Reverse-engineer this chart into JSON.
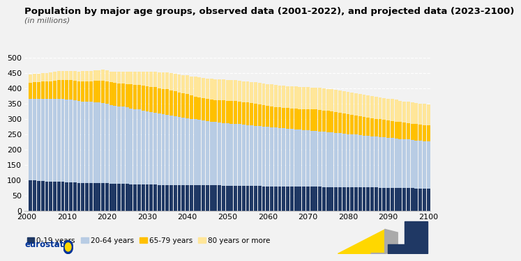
{
  "title": "Population by major age groups, observed data (2001-2022), and projected data (2023-2100)",
  "subtitle": "(in millions)",
  "years": [
    2001,
    2002,
    2003,
    2004,
    2005,
    2006,
    2007,
    2008,
    2009,
    2010,
    2011,
    2012,
    2013,
    2014,
    2015,
    2016,
    2017,
    2018,
    2019,
    2020,
    2021,
    2022,
    2023,
    2024,
    2025,
    2026,
    2027,
    2028,
    2029,
    2030,
    2031,
    2032,
    2033,
    2034,
    2035,
    2036,
    2037,
    2038,
    2039,
    2040,
    2041,
    2042,
    2043,
    2044,
    2045,
    2046,
    2047,
    2048,
    2049,
    2050,
    2051,
    2052,
    2053,
    2054,
    2055,
    2056,
    2057,
    2058,
    2059,
    2060,
    2061,
    2062,
    2063,
    2064,
    2065,
    2066,
    2067,
    2068,
    2069,
    2070,
    2071,
    2072,
    2073,
    2074,
    2075,
    2076,
    2077,
    2078,
    2079,
    2080,
    2081,
    2082,
    2083,
    2084,
    2085,
    2086,
    2087,
    2088,
    2089,
    2090,
    2091,
    2092,
    2093,
    2094,
    2095,
    2096,
    2097,
    2098,
    2099,
    2100
  ],
  "age_0_19": [
    100,
    99,
    98,
    97,
    96,
    95,
    95,
    94,
    94,
    93,
    93,
    92,
    91,
    91,
    91,
    91,
    91,
    91,
    91,
    90,
    89,
    88,
    88,
    88,
    88,
    87,
    87,
    87,
    86,
    86,
    85,
    85,
    84,
    84,
    84,
    83,
    83,
    83,
    83,
    83,
    83,
    83,
    83,
    83,
    83,
    83,
    83,
    83,
    82,
    82,
    82,
    82,
    82,
    81,
    81,
    81,
    81,
    81,
    80,
    80,
    80,
    80,
    80,
    80,
    80,
    80,
    79,
    79,
    79,
    79,
    79,
    79,
    79,
    78,
    78,
    78,
    78,
    78,
    77,
    77,
    77,
    77,
    77,
    76,
    76,
    76,
    76,
    75,
    75,
    75,
    75,
    75,
    74,
    74,
    74,
    74,
    73,
    73,
    73,
    73
  ],
  "age_20_64": [
    265,
    267,
    268,
    269,
    270,
    271,
    272,
    272,
    272,
    271,
    270,
    269,
    268,
    267,
    266,
    265,
    264,
    263,
    261,
    259,
    257,
    256,
    254,
    252,
    250,
    248,
    246,
    244,
    242,
    240,
    238,
    236,
    234,
    232,
    230,
    228,
    226,
    224,
    222,
    220,
    218,
    216,
    214,
    212,
    210,
    208,
    207,
    206,
    205,
    204,
    203,
    202,
    201,
    200,
    199,
    198,
    197,
    196,
    195,
    194,
    193,
    192,
    191,
    190,
    189,
    188,
    187,
    186,
    185,
    184,
    183,
    182,
    181,
    180,
    179,
    178,
    177,
    176,
    175,
    174,
    173,
    172,
    171,
    170,
    169,
    168,
    167,
    166,
    165,
    164,
    163,
    162,
    161,
    160,
    159,
    158,
    157,
    156,
    155,
    154
  ],
  "age_65_79": [
    53,
    54,
    55,
    56,
    57,
    58,
    59,
    61,
    62,
    63,
    64,
    64,
    65,
    66,
    67,
    68,
    70,
    71,
    73,
    74,
    74,
    74,
    75,
    76,
    77,
    78,
    79,
    80,
    81,
    81,
    82,
    83,
    83,
    83,
    83,
    82,
    81,
    80,
    79,
    78,
    76,
    75,
    74,
    73,
    72,
    72,
    72,
    73,
    74,
    74,
    75,
    75,
    75,
    74,
    74,
    73,
    72,
    71,
    70,
    69,
    68,
    67,
    67,
    67,
    67,
    67,
    68,
    68,
    68,
    69,
    69,
    70,
    70,
    70,
    70,
    69,
    68,
    67,
    66,
    65,
    64,
    63,
    62,
    61,
    60,
    59,
    58,
    58,
    57,
    56,
    56,
    55,
    55,
    54,
    54,
    53,
    53,
    53,
    52,
    52
  ],
  "age_80_plus": [
    27,
    27,
    27,
    28,
    28,
    29,
    29,
    30,
    30,
    31,
    31,
    32,
    32,
    33,
    34,
    34,
    35,
    35,
    36,
    36,
    36,
    37,
    38,
    39,
    40,
    42,
    43,
    45,
    46,
    48,
    49,
    51,
    52,
    54,
    55,
    57,
    58,
    59,
    60,
    62,
    63,
    64,
    65,
    66,
    67,
    68,
    68,
    68,
    68,
    68,
    68,
    68,
    68,
    69,
    69,
    69,
    70,
    70,
    71,
    71,
    72,
    72,
    72,
    72,
    72,
    72,
    72,
    72,
    72,
    72,
    72,
    72,
    72,
    72,
    72,
    72,
    72,
    72,
    72,
    72,
    72,
    72,
    72,
    72,
    72,
    72,
    72,
    72,
    71,
    71,
    71,
    71,
    70,
    70,
    70,
    70,
    69,
    69,
    69,
    68
  ],
  "color_0_19": "#1f3864",
  "color_20_64": "#b8cce4",
  "color_65_79": "#ffc000",
  "color_80_plus": "#ffe699",
  "bg_color": "#f2f2f2",
  "grid_color": "#ffffff",
  "spine_color": "#c0c0c0",
  "ylim": [
    0,
    500
  ],
  "yticks": [
    0.0,
    50.0,
    100.0,
    150.0,
    200.0,
    250.0,
    300.0,
    350.0,
    400.0,
    450.0,
    500.0
  ],
  "xticks": [
    2000,
    2010,
    2020,
    2030,
    2040,
    2050,
    2060,
    2070,
    2080,
    2090,
    2100
  ],
  "legend_labels": [
    "0-19 years",
    "20-64 years",
    "65-79 years",
    "80 years or more"
  ],
  "title_fontsize": 9.5,
  "subtitle_fontsize": 8,
  "axis_fontsize": 8,
  "legend_fontsize": 7.5,
  "eurostat_color": "#003399",
  "gold_color": "#FFD700",
  "gray_color": "#aaaaaa"
}
